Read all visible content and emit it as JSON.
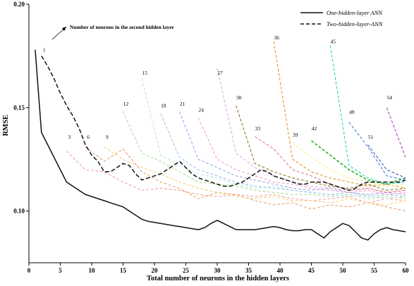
{
  "chart_data": {
    "type": "line",
    "title": "",
    "xlabel": "Total number of neurons in the hidden layers",
    "ylabel": "RMSE",
    "xlim": [
      0,
      60
    ],
    "ylim": [
      0.075,
      0.2
    ],
    "xticks": [
      0,
      5,
      10,
      15,
      20,
      25,
      30,
      35,
      40,
      45,
      50,
      55,
      60
    ],
    "yticks": [
      0.1,
      0.15,
      0.2
    ],
    "ytick_labels": [
      "0.10",
      "0.15",
      "0.20"
    ],
    "grid": false,
    "legend": "top-right",
    "annotation": "Number of neurons in the second  hidden layer",
    "series": [
      {
        "name": "One-hidden-layer ANN",
        "style": "solid",
        "color": "#111111",
        "x": [
          1,
          2,
          3,
          4,
          5,
          6,
          7,
          8,
          9,
          10,
          11,
          12,
          13,
          14,
          15,
          16,
          17,
          18,
          19,
          20,
          21,
          22,
          23,
          24,
          25,
          26,
          27,
          28,
          29,
          30,
          31,
          32,
          33,
          34,
          35,
          36,
          37,
          38,
          39,
          40,
          41,
          42,
          43,
          44,
          45,
          46,
          47,
          48,
          49,
          50,
          51,
          52,
          53,
          54,
          55,
          56,
          57,
          58,
          59,
          60
        ],
        "y": [
          0.178,
          0.138,
          0.132,
          0.126,
          0.12,
          0.114,
          0.112,
          0.11,
          0.108,
          0.107,
          0.106,
          0.105,
          0.104,
          0.103,
          0.102,
          0.1,
          0.098,
          0.096,
          0.095,
          0.0945,
          0.094,
          0.0935,
          0.093,
          0.0925,
          0.092,
          0.0915,
          0.091,
          0.092,
          0.094,
          0.0955,
          0.094,
          0.0925,
          0.091,
          0.091,
          0.091,
          0.091,
          0.0915,
          0.092,
          0.0925,
          0.092,
          0.091,
          0.0905,
          0.0905,
          0.091,
          0.091,
          0.089,
          0.087,
          0.09,
          0.092,
          0.094,
          0.093,
          0.09,
          0.087,
          0.086,
          0.089,
          0.091,
          0.092,
          0.091,
          0.0905,
          0.09
        ]
      },
      {
        "name": "Two-hidden-layer-ANN",
        "style": "dashed",
        "color": "#111111",
        "x": [
          2,
          3,
          4,
          5,
          6,
          7,
          8,
          9,
          10,
          11,
          12,
          13,
          14,
          15,
          16,
          17,
          18,
          19,
          20,
          21,
          22,
          23,
          24,
          25,
          26,
          27,
          28,
          29,
          30,
          31,
          32,
          33,
          34,
          35,
          36,
          37,
          38,
          39,
          40,
          41,
          42,
          43,
          44,
          45,
          46,
          47,
          48,
          49,
          50,
          51,
          52,
          53,
          54,
          55,
          56,
          57,
          58,
          59,
          60
        ],
        "y": [
          0.175,
          0.17,
          0.164,
          0.157,
          0.151,
          0.146,
          0.14,
          0.132,
          0.127,
          0.124,
          0.119,
          0.119,
          0.121,
          0.123,
          0.122,
          0.118,
          0.115,
          0.116,
          0.117,
          0.118,
          0.12,
          0.122,
          0.124,
          0.121,
          0.118,
          0.116,
          0.115,
          0.114,
          0.113,
          0.112,
          0.112,
          0.113,
          0.114,
          0.116,
          0.118,
          0.12,
          0.119,
          0.117,
          0.116,
          0.115,
          0.114,
          0.113,
          0.113,
          0.114,
          0.114,
          0.114,
          0.113,
          0.112,
          0.111,
          0.11,
          0.111,
          0.113,
          0.114,
          0.114,
          0.114,
          0.114,
          0.114,
          0.114,
          0.115
        ]
      },
      {
        "label": "3",
        "style": "dashed",
        "color": "#f4a3a3",
        "x": [
          6,
          9,
          12,
          15,
          18,
          21,
          24,
          27,
          30,
          33,
          36,
          39,
          42,
          45,
          48,
          51,
          54,
          57,
          60
        ],
        "y": [
          0.129,
          0.12,
          0.119,
          0.114,
          0.11,
          0.111,
          0.11,
          0.108,
          0.107,
          0.108,
          0.107,
          0.108,
          0.106,
          0.105,
          0.106,
          0.107,
          0.104,
          0.106,
          0.105
        ]
      },
      {
        "label": "6",
        "style": "dashed",
        "color": "#e9a272",
        "x": [
          9,
          12,
          15,
          18,
          21,
          24,
          27,
          30,
          33,
          36,
          39,
          42,
          45,
          48,
          51,
          54,
          57,
          60
        ],
        "y": [
          0.131,
          0.124,
          0.13,
          0.119,
          0.114,
          0.111,
          0.106,
          0.109,
          0.108,
          0.105,
          0.103,
          0.104,
          0.101,
          0.103,
          0.102,
          0.104,
          0.102,
          0.1
        ]
      },
      {
        "label": "9",
        "style": "dashed",
        "color": "#f6d37a",
        "x": [
          12,
          15,
          18,
          21,
          24,
          27,
          30,
          33,
          36,
          39,
          42,
          45,
          48,
          51,
          54,
          57,
          60
        ],
        "y": [
          0.131,
          0.125,
          0.121,
          0.118,
          0.114,
          0.111,
          0.109,
          0.107,
          0.106,
          0.107,
          0.105,
          0.105,
          0.104,
          0.106,
          0.104,
          0.103,
          0.105
        ]
      },
      {
        "label": "12",
        "style": "dashed",
        "color": "#a9e09a",
        "x": [
          15,
          18,
          21,
          24,
          27,
          30,
          33,
          36,
          39,
          42,
          45,
          48,
          51,
          54,
          57,
          60
        ],
        "y": [
          0.148,
          0.128,
          0.124,
          0.119,
          0.114,
          0.113,
          0.112,
          0.11,
          0.109,
          0.108,
          0.108,
          0.107,
          0.108,
          0.106,
          0.107,
          0.106
        ]
      },
      {
        "label": "15",
        "style": "dashed",
        "color": "#b9e8d8",
        "x": [
          18,
          21,
          24,
          27,
          30,
          33,
          36,
          39,
          42,
          45,
          48,
          51,
          54,
          57,
          60
        ],
        "y": [
          0.164,
          0.127,
          0.122,
          0.118,
          0.116,
          0.113,
          0.111,
          0.112,
          0.11,
          0.109,
          0.108,
          0.107,
          0.108,
          0.106,
          0.107
        ]
      },
      {
        "label": "18",
        "style": "dashed",
        "color": "#9cc7ee",
        "x": [
          21,
          24,
          27,
          30,
          33,
          36,
          39,
          42,
          45,
          48,
          51,
          54,
          57,
          60
        ],
        "y": [
          0.147,
          0.126,
          0.12,
          0.117,
          0.114,
          0.112,
          0.111,
          0.11,
          0.109,
          0.108,
          0.109,
          0.107,
          0.108,
          0.107
        ]
      },
      {
        "label": "21",
        "style": "dashed",
        "color": "#a7a4e8",
        "x": [
          24,
          27,
          30,
          33,
          36,
          39,
          42,
          45,
          48,
          51,
          54,
          57,
          60
        ],
        "y": [
          0.148,
          0.125,
          0.121,
          0.117,
          0.115,
          0.113,
          0.111,
          0.11,
          0.111,
          0.109,
          0.108,
          0.109,
          0.108
        ]
      },
      {
        "label": "24",
        "style": "dashed",
        "color": "#f2a6c4",
        "x": [
          27,
          30,
          33,
          36,
          39,
          42,
          45,
          48,
          51,
          54,
          57,
          60
        ],
        "y": [
          0.145,
          0.125,
          0.12,
          0.117,
          0.114,
          0.113,
          0.111,
          0.11,
          0.109,
          0.11,
          0.108,
          0.109
        ]
      },
      {
        "label": "27",
        "style": "dashed",
        "color": "#e0a8ee",
        "x": [
          30,
          33,
          36,
          39,
          42,
          45,
          48,
          51,
          54,
          57,
          60
        ],
        "y": [
          0.169,
          0.128,
          0.121,
          0.117,
          0.114,
          0.112,
          0.111,
          0.11,
          0.111,
          0.109,
          0.11
        ]
      },
      {
        "label": "30",
        "style": "dashed",
        "color": "#8a7a2a",
        "x": [
          33,
          36,
          39,
          42,
          45,
          48,
          51,
          54,
          57,
          60
        ],
        "y": [
          0.151,
          0.123,
          0.119,
          0.116,
          0.114,
          0.112,
          0.111,
          0.113,
          0.11,
          0.111
        ]
      },
      {
        "label": "33",
        "style": "dashed",
        "color": "#e47c7c",
        "x": [
          36,
          39,
          42,
          45,
          48,
          51,
          54,
          57,
          60
        ],
        "y": [
          0.136,
          0.13,
          0.12,
          0.117,
          0.113,
          0.11,
          0.111,
          0.109,
          0.11
        ]
      },
      {
        "label": "36",
        "style": "dashed",
        "color": "#e8962f",
        "x": [
          39,
          42,
          45,
          48,
          51,
          54,
          57,
          60
        ],
        "y": [
          0.182,
          0.125,
          0.119,
          0.116,
          0.114,
          0.112,
          0.113,
          0.111
        ]
      },
      {
        "label": "39",
        "style": "dashed",
        "color": "#f7ee8a",
        "x": [
          42,
          45,
          48,
          51,
          54,
          57,
          60
        ],
        "y": [
          0.133,
          0.126,
          0.12,
          0.116,
          0.114,
          0.112,
          0.113
        ]
      },
      {
        "label": "42",
        "style": "dashed",
        "color": "#22b024",
        "x": [
          45,
          48,
          51,
          54,
          57,
          60
        ],
        "y": [
          0.134,
          0.127,
          0.12,
          0.115,
          0.113,
          0.116
        ]
      },
      {
        "label": "45",
        "style": "dashed",
        "color": "#26d4c2",
        "x": [
          48,
          51,
          54,
          57,
          60
        ],
        "y": [
          0.18,
          0.122,
          0.116,
          0.113,
          0.114
        ]
      },
      {
        "label": "48",
        "style": "dashed",
        "color": "#3c8ad6",
        "x": [
          51,
          54,
          57,
          60
        ],
        "y": [
          0.143,
          0.131,
          0.117,
          0.115
        ]
      },
      {
        "label": "51",
        "style": "dashed",
        "color": "#4f46c9",
        "x": [
          54,
          57,
          60
        ],
        "y": [
          0.132,
          0.12,
          0.116
        ]
      },
      {
        "label": "54",
        "style": "dashed",
        "color": "#b03fb6",
        "x": [
          57,
          60
        ],
        "y": [
          0.15,
          0.126
        ]
      }
    ],
    "curve_labels": [
      {
        "text": "1",
        "x": 2,
        "y": 0.176
      },
      {
        "text": "3",
        "x": 6,
        "y": 0.134
      },
      {
        "text": "6",
        "x": 9,
        "y": 0.134
      },
      {
        "text": "9",
        "x": 12,
        "y": 0.134
      },
      {
        "text": "12",
        "x": 15,
        "y": 0.15
      },
      {
        "text": "15",
        "x": 18,
        "y": 0.165
      },
      {
        "text": "18",
        "x": 21,
        "y": 0.149
      },
      {
        "text": "21",
        "x": 24,
        "y": 0.15
      },
      {
        "text": "24",
        "x": 27,
        "y": 0.147
      },
      {
        "text": "27",
        "x": 30,
        "y": 0.165
      },
      {
        "text": "30",
        "x": 33,
        "y": 0.153
      },
      {
        "text": "33",
        "x": 36,
        "y": 0.138
      },
      {
        "text": "36",
        "x": 39,
        "y": 0.182
      },
      {
        "text": "39",
        "x": 42,
        "y": 0.135
      },
      {
        "text": "42",
        "x": 45,
        "y": 0.138
      },
      {
        "text": "45",
        "x": 48,
        "y": 0.18
      },
      {
        "text": "48",
        "x": 51,
        "y": 0.146
      },
      {
        "text": "51",
        "x": 54,
        "y": 0.134
      },
      {
        "text": "54",
        "x": 57,
        "y": 0.153
      }
    ]
  }
}
